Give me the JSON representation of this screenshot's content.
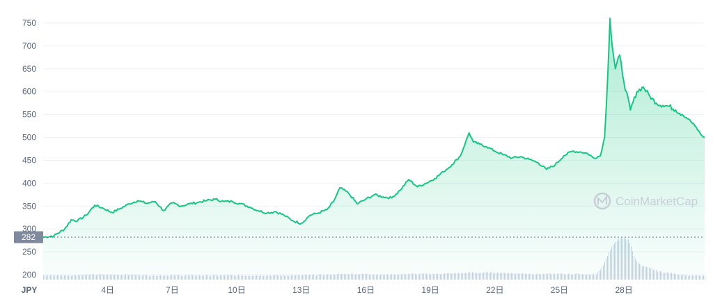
{
  "chart_data": {
    "type": "area",
    "title": "",
    "currency": "JPY",
    "watermark": "CoinMarketCap",
    "current_price_label": "282",
    "current_price": 282,
    "y_ticks": [
      200,
      250,
      300,
      350,
      400,
      450,
      500,
      550,
      600,
      650,
      700,
      750
    ],
    "ylim": [
      190,
      760
    ],
    "x_ticks": [
      {
        "label": "4日",
        "day": 4
      },
      {
        "label": "7日",
        "day": 7
      },
      {
        "label": "10日",
        "day": 10
      },
      {
        "label": "13日",
        "day": 13
      },
      {
        "label": "16日",
        "day": 16
      },
      {
        "label": "19日",
        "day": 19
      },
      {
        "label": "22日",
        "day": 22
      },
      {
        "label": "25日",
        "day": 25
      },
      {
        "label": "28日",
        "day": 28
      }
    ],
    "xlim": [
      1,
      31.75
    ],
    "series": [
      {
        "values_note": "",
        "x": [
          1.0,
          1.5,
          2.0,
          2.3,
          2.6,
          3.0,
          3.4,
          3.8,
          4.2,
          4.6,
          5.0,
          5.4,
          5.8,
          6.2,
          6.6,
          7.0,
          7.4,
          7.8,
          8.2,
          8.6,
          9.0,
          9.4,
          9.8,
          10.2,
          10.6,
          11.0,
          11.4,
          11.8,
          12.2,
          12.6,
          13.0,
          13.4,
          13.8,
          14.2,
          14.5,
          14.8,
          15.2,
          15.6,
          16.0,
          16.4,
          16.8,
          17.2,
          17.6,
          18.0,
          18.4,
          18.8,
          19.2,
          19.6,
          20.0,
          20.4,
          20.8,
          21.0,
          21.3,
          21.6,
          22.0,
          22.4,
          22.8,
          23.2,
          23.6,
          24.0,
          24.4,
          24.8,
          25.2,
          25.6,
          26.0,
          26.3,
          26.6,
          26.9,
          27.1,
          27.25,
          27.35,
          27.45,
          27.6,
          27.8,
          28.0,
          28.3,
          28.6,
          28.9,
          29.2,
          29.5,
          29.8,
          30.1,
          30.4,
          30.7,
          31.0,
          31.3,
          31.6,
          31.75
        ],
        "y": [
          282,
          285,
          300,
          320,
          318,
          330,
          352,
          345,
          336,
          345,
          355,
          362,
          356,
          360,
          340,
          357,
          350,
          355,
          358,
          362,
          365,
          360,
          360,
          355,
          348,
          340,
          335,
          338,
          330,
          318,
          312,
          330,
          335,
          342,
          360,
          390,
          378,
          355,
          365,
          375,
          370,
          368,
          385,
          408,
          392,
          400,
          410,
          425,
          440,
          460,
          510,
          490,
          485,
          480,
          470,
          462,
          455,
          458,
          452,
          445,
          430,
          440,
          460,
          470,
          468,
          465,
          455,
          460,
          500,
          640,
          760,
          700,
          650,
          680,
          620,
          560,
          600,
          610,
          590,
          575,
          570,
          568,
          560,
          550,
          540,
          525,
          505,
          500
        ]
      }
    ],
    "volume": {
      "x": [
        1.0,
        2.0,
        3.0,
        4.0,
        5.0,
        6.0,
        7.0,
        8.0,
        9.0,
        10.0,
        11.0,
        12.0,
        13.0,
        14.0,
        15.0,
        16.0,
        17.0,
        18.0,
        19.0,
        20.0,
        21.0,
        22.0,
        23.0,
        24.0,
        25.0,
        26.0,
        26.7,
        27.0,
        27.3,
        27.6,
        27.9,
        28.2,
        28.5,
        28.8,
        29.2,
        29.6,
        30.0,
        30.5,
        31.0,
        31.75
      ],
      "v": [
        6,
        6,
        7,
        7,
        7,
        6,
        6,
        6,
        6,
        6,
        6,
        6,
        6,
        7,
        8,
        8,
        7,
        8,
        8,
        9,
        10,
        10,
        9,
        8,
        8,
        8,
        7,
        20,
        40,
        55,
        60,
        58,
        30,
        20,
        16,
        12,
        10,
        8,
        6,
        5
      ]
    },
    "colors": {
      "line": "#16c784",
      "fill_top": "#16c784",
      "grid": "#eff2f5",
      "tick_text": "#58667e",
      "badge": "#808a9d",
      "volume": "#ccd2e0"
    },
    "grid": true
  }
}
